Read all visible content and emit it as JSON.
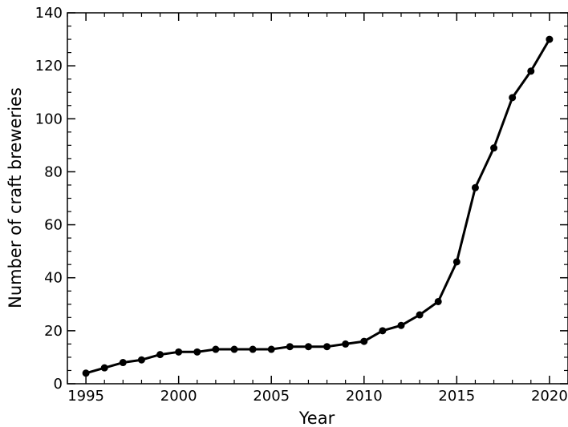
{
  "chart_data": {
    "type": "line",
    "title": "",
    "xlabel": "Year",
    "ylabel": "Number of craft breweries",
    "xlim": [
      1994,
      2021
    ],
    "ylim": [
      0,
      140
    ],
    "xticks": [
      1995,
      2000,
      2005,
      2010,
      2015,
      2020
    ],
    "yticks": [
      0,
      20,
      40,
      60,
      80,
      100,
      120,
      140
    ],
    "xtick_labels": [
      "1995",
      "2000",
      "2005",
      "2010",
      "2015",
      "2020"
    ],
    "ytick_labels": [
      "0",
      "20",
      "40",
      "60",
      "80",
      "100",
      "120",
      "140"
    ],
    "minor_x_step": 1,
    "minor_y_step": 5,
    "tick_direction": "in",
    "grid": false,
    "legend": "none",
    "line_color": "#000000",
    "x": [
      1995,
      1996,
      1997,
      1998,
      1999,
      2000,
      2001,
      2002,
      2003,
      2004,
      2005,
      2006,
      2007,
      2008,
      2009,
      2010,
      2011,
      2012,
      2013,
      2014,
      2015,
      2016,
      2017,
      2018,
      2019,
      2020
    ],
    "series": [
      {
        "values": [
          4,
          6,
          8,
          9,
          11,
          12,
          12,
          13,
          13,
          13,
          13,
          14,
          14,
          14,
          15,
          16,
          20,
          22,
          26,
          31,
          46,
          74,
          89,
          108,
          118,
          130
        ]
      }
    ]
  }
}
